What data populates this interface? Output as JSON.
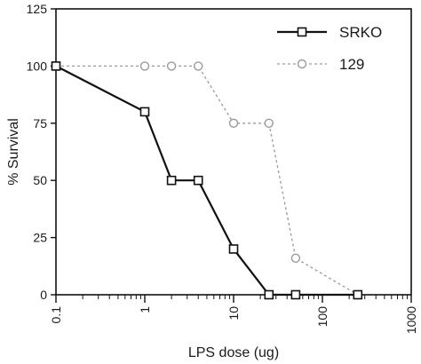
{
  "chart_data": {
    "type": "line",
    "title": "",
    "xlabel": "LPS dose (ug)",
    "ylabel": "% Survival",
    "x_scale": "log",
    "xlim": [
      0.1,
      1000
    ],
    "ylim": [
      0,
      125
    ],
    "x_ticks": [
      {
        "value": 0.1,
        "label": "0.1"
      },
      {
        "value": 1,
        "label": "1"
      },
      {
        "value": 10,
        "label": "10"
      },
      {
        "value": 100,
        "label": "100"
      },
      {
        "value": 1000,
        "label": "1000"
      }
    ],
    "y_ticks": [
      {
        "value": 0,
        "label": "0"
      },
      {
        "value": 25,
        "label": "25"
      },
      {
        "value": 50,
        "label": "50"
      },
      {
        "value": 75,
        "label": "75"
      },
      {
        "value": 100,
        "label": "100"
      },
      {
        "value": 125,
        "label": "125"
      }
    ],
    "grid": false,
    "legend_position": "top-right",
    "series": [
      {
        "name": "SRKO",
        "style": "solid",
        "marker": "square",
        "color": "#111111",
        "x": [
          0.1,
          1,
          2,
          4,
          10,
          25,
          50,
          250
        ],
        "y": [
          100,
          80,
          50,
          50,
          20,
          0,
          0,
          0
        ]
      },
      {
        "name": "129",
        "style": "dotted",
        "marker": "circle",
        "color": "#9a9a9a",
        "x": [
          0.1,
          1,
          2,
          4,
          10,
          25,
          50,
          250
        ],
        "y": [
          100,
          100,
          100,
          100,
          75,
          75,
          16,
          0
        ]
      }
    ]
  }
}
